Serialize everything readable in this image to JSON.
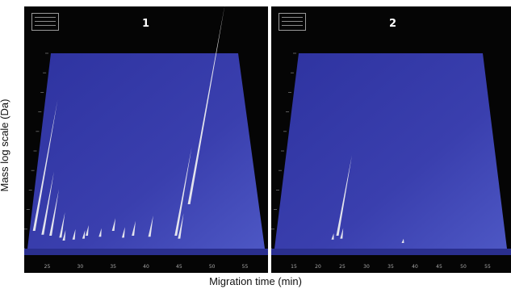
{
  "chart_data": [
    {
      "type": "surface-3d",
      "title": "1",
      "x_ticks": [
        "25",
        "30",
        "35",
        "40",
        "45",
        "50",
        "55"
      ],
      "x_range": [
        22,
        58
      ],
      "surface_color": "#3a3fae",
      "peak_color": "#f2f2f2",
      "peaks": [
        {
          "x": 23.0,
          "y_frac": 0.3,
          "h_frac": 0.62
        },
        {
          "x": 24.3,
          "y_frac": 0.22,
          "h_frac": 0.3
        },
        {
          "x": 25.5,
          "y_frac": 0.2,
          "h_frac": 0.22
        },
        {
          "x": 27.0,
          "y_frac": 0.16,
          "h_frac": 0.12
        },
        {
          "x": 27.5,
          "y_frac": 0.1,
          "h_frac": 0.05
        },
        {
          "x": 29.0,
          "y_frac": 0.12,
          "h_frac": 0.05
        },
        {
          "x": 30.5,
          "y_frac": 0.14,
          "h_frac": 0.04
        },
        {
          "x": 31.0,
          "y_frac": 0.2,
          "h_frac": 0.05
        },
        {
          "x": 33.0,
          "y_frac": 0.18,
          "h_frac": 0.04
        },
        {
          "x": 35.0,
          "y_frac": 0.3,
          "h_frac": 0.06
        },
        {
          "x": 36.5,
          "y_frac": 0.16,
          "h_frac": 0.05
        },
        {
          "x": 38.0,
          "y_frac": 0.2,
          "h_frac": 0.07
        },
        {
          "x": 40.5,
          "y_frac": 0.18,
          "h_frac": 0.1
        },
        {
          "x": 44.5,
          "y_frac": 0.2,
          "h_frac": 0.42
        },
        {
          "x": 45.0,
          "y_frac": 0.14,
          "h_frac": 0.12
        },
        {
          "x": 46.5,
          "y_frac": 0.85,
          "h_frac": 0.95
        }
      ]
    },
    {
      "type": "surface-3d",
      "title": "2",
      "x_ticks": [
        "15",
        "20",
        "25",
        "30",
        "35",
        "40",
        "45",
        "50",
        "55"
      ],
      "x_range": [
        11,
        59
      ],
      "surface_color": "#3a3fae",
      "peak_color": "#f2f2f2",
      "peaks": [
        {
          "x": 24.0,
          "y_frac": 0.2,
          "h_frac": 0.38
        },
        {
          "x": 24.8,
          "y_frac": 0.14,
          "h_frac": 0.05
        },
        {
          "x": 23.0,
          "y_frac": 0.12,
          "h_frac": 0.03
        },
        {
          "x": 37.5,
          "y_frac": 0.05,
          "h_frac": 0.02
        }
      ]
    }
  ],
  "axes": {
    "ylabel": "Mass log scale (Da)",
    "xlabel": "Migration time (min)"
  }
}
